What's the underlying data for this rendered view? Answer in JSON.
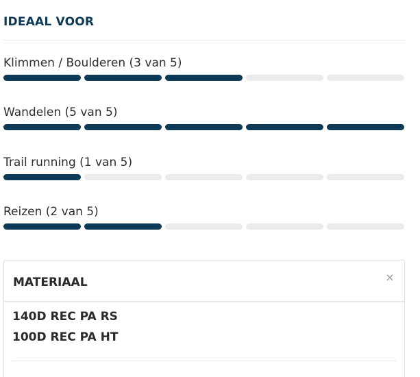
{
  "ideal_section": {
    "title": "IDEAAL VOOR",
    "ratings": [
      {
        "label": "Klimmen / Boulderen (3 van 5)",
        "value": 3,
        "max": 5
      },
      {
        "label": "Wandelen (5 van 5)",
        "value": 5,
        "max": 5
      },
      {
        "label": "Trail running (1 van 5)",
        "value": 1,
        "max": 5
      },
      {
        "label": "Reizen (2 van 5)",
        "value": 2,
        "max": 5
      }
    ]
  },
  "material_panel": {
    "title": "MATERIAAL",
    "close_icon": "×",
    "lines": [
      "140D REC PA RS",
      "100D REC PA HT"
    ]
  },
  "colors": {
    "accent": "#0d3a57",
    "bar_empty": "#ebebeb"
  }
}
